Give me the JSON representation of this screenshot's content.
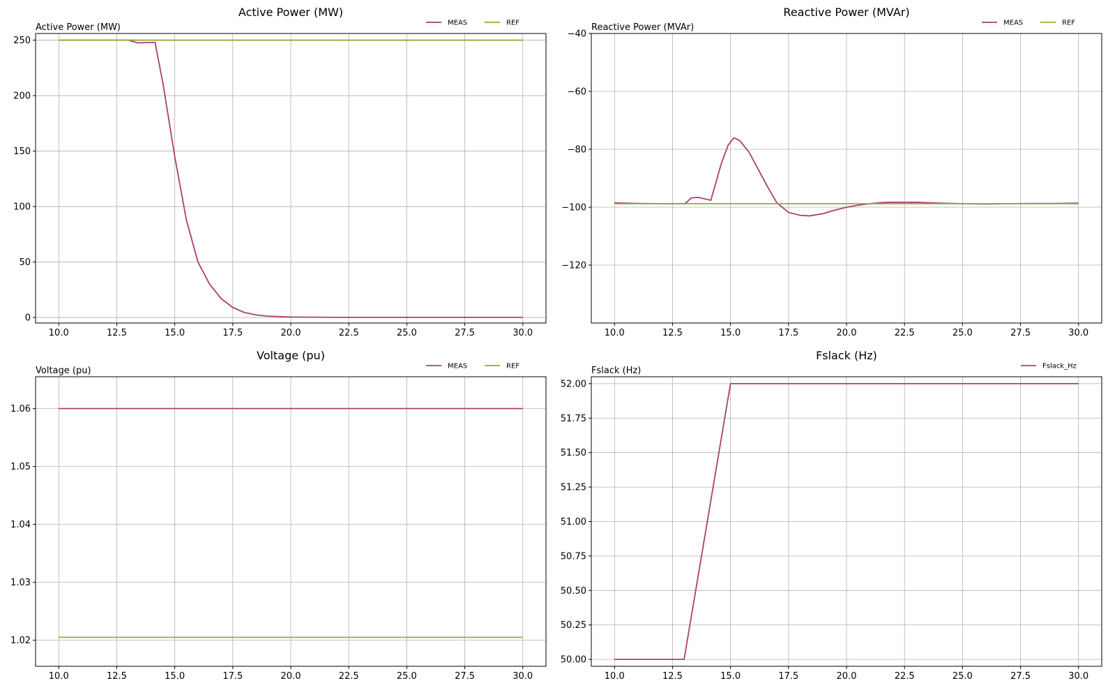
{
  "colors": {
    "meas": "#ab3d74",
    "ref": "#93ac2c",
    "grid": "#b0b0b0"
  },
  "chart_data": [
    {
      "type": "line",
      "title": "Active Power (MW)",
      "ylabel": "Active Power (MW)",
      "xlim": [
        9.0,
        31.0
      ],
      "ylim": [
        -5,
        256
      ],
      "xticks": [
        10.0,
        12.5,
        15.0,
        17.5,
        20.0,
        22.5,
        25.0,
        27.5,
        30.0
      ],
      "xtick_labels": [
        "10.0",
        "12.5",
        "15.0",
        "17.5",
        "20.0",
        "22.5",
        "25.0",
        "27.5",
        "30.0"
      ],
      "yticks": [
        0,
        50,
        100,
        150,
        200,
        250
      ],
      "ytick_labels": [
        "0",
        "50",
        "100",
        "150",
        "200",
        "250"
      ],
      "grid": true,
      "legend": "top-right",
      "series": [
        {
          "name": "MEAS",
          "color": "#ab3d74",
          "x": [
            10,
            13.0,
            13.4,
            14.15,
            14.5,
            15.0,
            15.5,
            16.0,
            16.5,
            17.0,
            17.5,
            18.0,
            18.5,
            19.0,
            20.0,
            22.0,
            30.0
          ],
          "y": [
            250,
            250,
            247.5,
            248,
            210,
            145,
            88,
            50,
            30,
            17,
            9,
            4.5,
            2.3,
            1.2,
            0.4,
            0.1,
            0.1
          ]
        },
        {
          "name": "REF",
          "color": "#93ac2c",
          "x": [
            10,
            30
          ],
          "y": [
            250,
            250
          ]
        }
      ]
    },
    {
      "type": "line",
      "title": "Reactive Power (MVAr)",
      "ylabel": "Reactive Power (MVAr)",
      "xlim": [
        9.0,
        31.0
      ],
      "ylim": [
        -140,
        -40
      ],
      "xticks": [
        10.0,
        12.5,
        15.0,
        17.5,
        20.0,
        22.5,
        25.0,
        27.5,
        30.0
      ],
      "xtick_labels": [
        "10.0",
        "12.5",
        "15.0",
        "17.5",
        "20.0",
        "22.5",
        "25.0",
        "27.5",
        "30.0"
      ],
      "yticks": [
        -120,
        -100,
        -80,
        -60,
        -40
      ],
      "ytick_labels": [
        "−120",
        "−100",
        "−80",
        "−60",
        "−40"
      ],
      "grid": true,
      "legend": "top-right",
      "series": [
        {
          "name": "MEAS",
          "color": "#ab3d74",
          "x": [
            10,
            11,
            12,
            13.0,
            13.1,
            13.3,
            13.6,
            14.15,
            14.3,
            14.6,
            14.9,
            15.15,
            15.4,
            15.8,
            16.2,
            16.6,
            17.0,
            17.5,
            18.0,
            18.4,
            19.0,
            19.5,
            20.0,
            20.5,
            21.0,
            21.5,
            22.0,
            23.0,
            24.0,
            25.0,
            26.0,
            27.0,
            28.0,
            29.0,
            30.0
          ],
          "y": [
            -98.5,
            -98.7,
            -98.8,
            -98.8,
            -98.4,
            -96.8,
            -96.6,
            -97.6,
            -93.5,
            -85,
            -78.5,
            -76.0,
            -77.0,
            -81,
            -87,
            -93,
            -98.5,
            -101.8,
            -102.8,
            -103.0,
            -102.2,
            -101.0,
            -100.0,
            -99.3,
            -98.8,
            -98.4,
            -98.3,
            -98.3,
            -98.6,
            -98.8,
            -98.9,
            -98.8,
            -98.7,
            -98.7,
            -98.6
          ]
        },
        {
          "name": "REF",
          "color": "#93ac2c",
          "x": [
            10,
            30
          ],
          "y": [
            -98.8,
            -98.8
          ]
        }
      ]
    },
    {
      "type": "line",
      "title": "Voltage (pu)",
      "ylabel": "Voltage (pu)",
      "xlim": [
        9.0,
        31.0
      ],
      "ylim": [
        1.0155,
        1.0655
      ],
      "xticks": [
        10.0,
        12.5,
        15.0,
        17.5,
        20.0,
        22.5,
        25.0,
        27.5,
        30.0
      ],
      "xtick_labels": [
        "10.0",
        "12.5",
        "15.0",
        "17.5",
        "20.0",
        "22.5",
        "25.0",
        "27.5",
        "30.0"
      ],
      "yticks": [
        1.02,
        1.03,
        1.04,
        1.05,
        1.06
      ],
      "ytick_labels": [
        "1.02",
        "1.03",
        "1.04",
        "1.05",
        "1.06"
      ],
      "grid": true,
      "legend": "top-right",
      "series": [
        {
          "name": "MEAS",
          "color": "#ab3d74",
          "x": [
            10,
            30
          ],
          "y": [
            1.06,
            1.06
          ]
        },
        {
          "name": "REF",
          "color": "#93ac2c",
          "x": [
            10,
            30
          ],
          "y": [
            1.0205,
            1.0205
          ]
        }
      ]
    },
    {
      "type": "line",
      "title": "Fslack (Hz)",
      "ylabel": "Fslack (Hz)",
      "xlim": [
        9.0,
        31.0
      ],
      "ylim": [
        49.95,
        52.05
      ],
      "xticks": [
        10.0,
        12.5,
        15.0,
        17.5,
        20.0,
        22.5,
        25.0,
        27.5,
        30.0
      ],
      "xtick_labels": [
        "10.0",
        "12.5",
        "15.0",
        "17.5",
        "20.0",
        "22.5",
        "25.0",
        "27.5",
        "30.0"
      ],
      "yticks": [
        50.0,
        50.25,
        50.5,
        50.75,
        51.0,
        51.25,
        51.5,
        51.75,
        52.0
      ],
      "ytick_labels": [
        "50.00",
        "50.25",
        "50.50",
        "50.75",
        "51.00",
        "51.25",
        "51.50",
        "51.75",
        "52.00"
      ],
      "grid": true,
      "legend": "top-right",
      "series": [
        {
          "name": "Fslack_Hz",
          "color": "#ab3d74",
          "x": [
            10,
            13.0,
            15.0,
            30
          ],
          "y": [
            50.0,
            50.0,
            52.0,
            52.0
          ]
        }
      ]
    }
  ]
}
